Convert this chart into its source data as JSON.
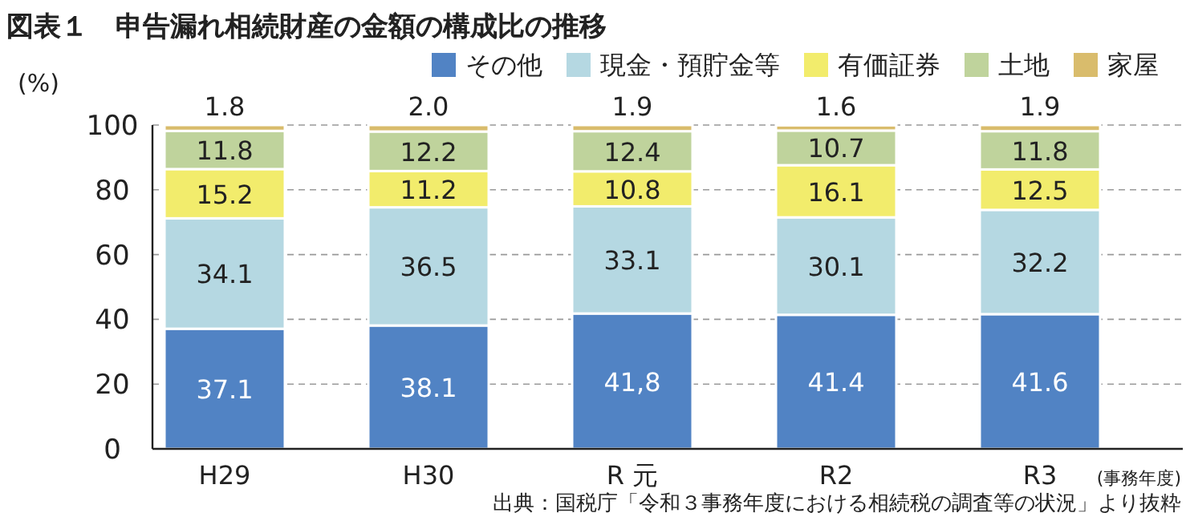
{
  "chart_data": {
    "type": "bar",
    "stacked": true,
    "title": "図表１　申告漏れ相続財産の金額の構成比の推移",
    "ylabel": "(%)",
    "xlabel": "(事務年度)",
    "annotations": [
      "出典：国税庁「令和３事務年度における相続税の調査等の状況」より抜粋"
    ],
    "categories": [
      "H29",
      "H30",
      "R 元",
      "R2",
      "R3"
    ],
    "ylim": [
      0,
      100
    ],
    "yticks": [
      0,
      20,
      40,
      60,
      80,
      100
    ],
    "grid": "y",
    "legend": "top right",
    "series": [
      {
        "name": "その他",
        "color": "#5183c4",
        "values": [
          37.1,
          38.1,
          41.8,
          41.4,
          41.6
        ],
        "value_labels": [
          "37.1",
          "38.1",
          "41,8",
          "41.4",
          "41.6"
        ]
      },
      {
        "name": "現金・預貯金等",
        "color": "#b5d8e2",
        "values": [
          34.1,
          36.5,
          33.1,
          30.1,
          32.2
        ],
        "value_labels": [
          "34.1",
          "36.5",
          "33.1",
          "30.1",
          "32.2"
        ]
      },
      {
        "name": "有価証券",
        "color": "#f2ec6c",
        "values": [
          15.2,
          11.2,
          10.8,
          16.1,
          12.5
        ],
        "value_labels": [
          "15.2",
          "11.2",
          "10.8",
          "16.1",
          "12.5"
        ]
      },
      {
        "name": "土地",
        "color": "#bfd39c",
        "values": [
          11.8,
          12.2,
          12.4,
          10.7,
          11.8
        ],
        "value_labels": [
          "11.8",
          "12.2",
          "12.4",
          "10.7",
          "11.8"
        ]
      },
      {
        "name": "家屋",
        "color": "#d9bc6c",
        "values": [
          1.8,
          2.0,
          1.9,
          1.6,
          1.9
        ],
        "value_labels": [
          "1.8",
          "2.0",
          "1.9",
          "1.6",
          "1.9"
        ]
      }
    ]
  }
}
